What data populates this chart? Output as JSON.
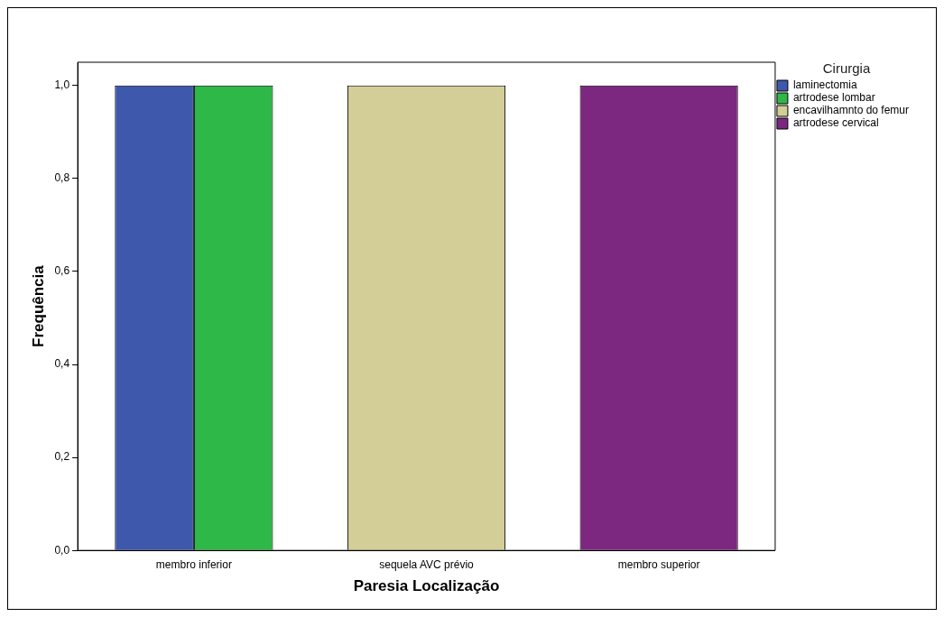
{
  "chart_data": {
    "type": "bar",
    "xlabel": "Paresia Localização",
    "ylabel": "Frequência",
    "legend_title": "Cirurgia",
    "categories": [
      "membro inferior",
      "sequela AVC prévio",
      "membro superior"
    ],
    "series": [
      {
        "name": "laminectomia",
        "color": "#3e58ac",
        "values": [
          1,
          null,
          null
        ]
      },
      {
        "name": "artrodese lombar",
        "color": "#2eb848",
        "values": [
          1,
          null,
          null
        ]
      },
      {
        "name": "encavilhamnto do femur",
        "color": "#d3ce97",
        "values": [
          null,
          1,
          null
        ]
      },
      {
        "name": "artrodese cervical",
        "color": "#7c2780",
        "values": [
          null,
          null,
          1
        ]
      }
    ],
    "ylim": [
      0,
      1.05
    ],
    "yticks": [
      {
        "value": 0,
        "label": "0,0"
      },
      {
        "value": 0.2,
        "label": "0,2"
      },
      {
        "value": 0.4,
        "label": "0,4"
      },
      {
        "value": 0.6,
        "label": "0,6"
      },
      {
        "value": 0.8,
        "label": "0,8"
      },
      {
        "value": 1,
        "label": "1,0"
      }
    ],
    "grid": false,
    "legend": "top right"
  }
}
